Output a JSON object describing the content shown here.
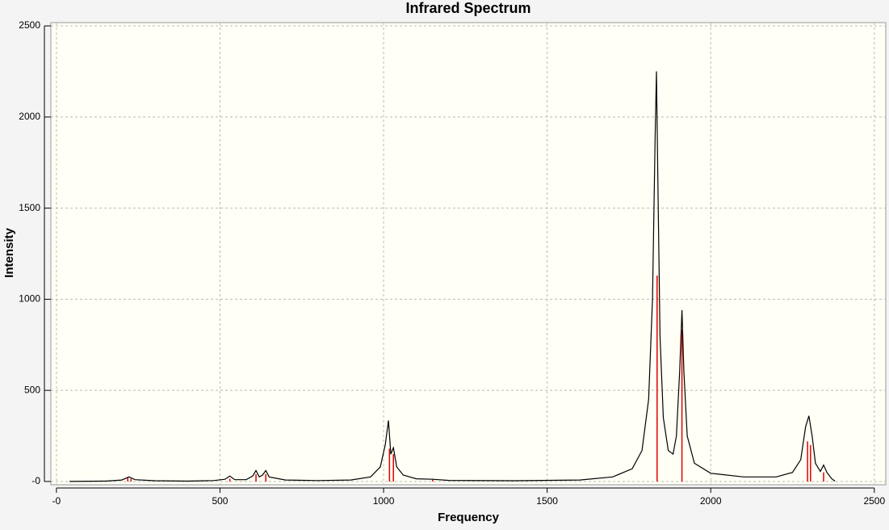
{
  "chart_data": {
    "type": "line",
    "title": "Infrared Spectrum",
    "x_label": "Frequency",
    "y_label": "Intensity",
    "xlim": [
      -17,
      2535
    ],
    "ylim": [
      -18,
      2518
    ],
    "xticks": [
      {
        "value": 0,
        "label": "-0"
      },
      500,
      1000,
      1500,
      2000,
      2500
    ],
    "yticks": [
      {
        "value": 0,
        "label": "-0"
      },
      500,
      1000,
      1500,
      2000,
      2500
    ],
    "grid": true,
    "curve": {
      "color": "#000000",
      "x": [
        40,
        150,
        200,
        222,
        240,
        300,
        400,
        480,
        515,
        530,
        545,
        580,
        600,
        610,
        620,
        630,
        640,
        650,
        700,
        800,
        900,
        960,
        990,
        1005,
        1015,
        1022,
        1030,
        1040,
        1060,
        1100,
        1150,
        1200,
        1400,
        1600,
        1700,
        1760,
        1790,
        1810,
        1822,
        1830,
        1834,
        1838,
        1845,
        1855,
        1870,
        1885,
        1895,
        1905,
        1912,
        1918,
        1928,
        1950,
        2000,
        2100,
        2200,
        2250,
        2275,
        2290,
        2300,
        2310,
        2320,
        2335,
        2345,
        2355,
        2370,
        2380
      ],
      "values": [
        0,
        2,
        8,
        25,
        10,
        4,
        2,
        5,
        12,
        30,
        10,
        10,
        30,
        60,
        25,
        35,
        60,
        25,
        8,
        5,
        8,
        25,
        80,
        200,
        335,
        150,
        185,
        80,
        35,
        15,
        12,
        6,
        4,
        8,
        25,
        70,
        170,
        450,
        1000,
        1900,
        2250,
        1700,
        800,
        350,
        170,
        150,
        250,
        600,
        940,
        600,
        250,
        100,
        45,
        25,
        25,
        50,
        120,
        300,
        360,
        250,
        100,
        55,
        90,
        50,
        15,
        2
      ]
    },
    "sticks": {
      "color": "#e00000",
      "x": [
        90,
        218,
        228,
        530,
        610,
        640,
        1018,
        1030,
        1150,
        1836,
        1912,
        2296,
        2305,
        2345
      ],
      "values": [
        3,
        20,
        15,
        15,
        40,
        40,
        180,
        150,
        10,
        1130,
        830,
        220,
        200,
        50
      ]
    }
  }
}
